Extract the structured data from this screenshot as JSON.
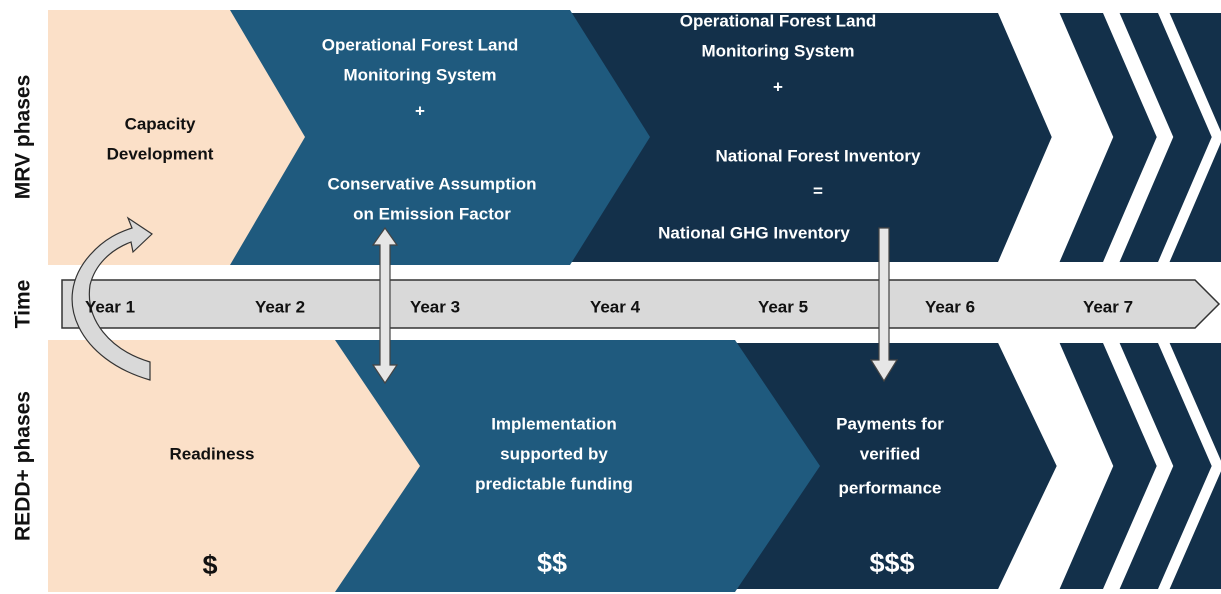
{
  "side_labels": {
    "mrv": "MRV phases",
    "time": "Time",
    "redd": "REDD+ phases"
  },
  "mrv_phases": [
    [
      "Capacity",
      "Development"
    ],
    [
      "Operational Forest Land",
      "Monitoring System",
      "+",
      "Conservative Assumption",
      "on Emission Factor"
    ],
    [
      "Operational Forest Land",
      "Monitoring System",
      "+",
      "National Forest Inventory",
      "=",
      "National GHG Inventory"
    ]
  ],
  "years": [
    "Year 1",
    "Year 2",
    "Year 3",
    "Year 4",
    "Year 5",
    "Year 6",
    "Year 7"
  ],
  "redd_phases": [
    {
      "lines": [
        "Readiness"
      ],
      "funding": "$"
    },
    {
      "lines": [
        "Implementation",
        "supported by",
        "predictable funding"
      ],
      "funding": "$$"
    },
    {
      "lines": [
        "Payments for",
        "verified",
        "performance"
      ],
      "funding": "$$$"
    }
  ]
}
